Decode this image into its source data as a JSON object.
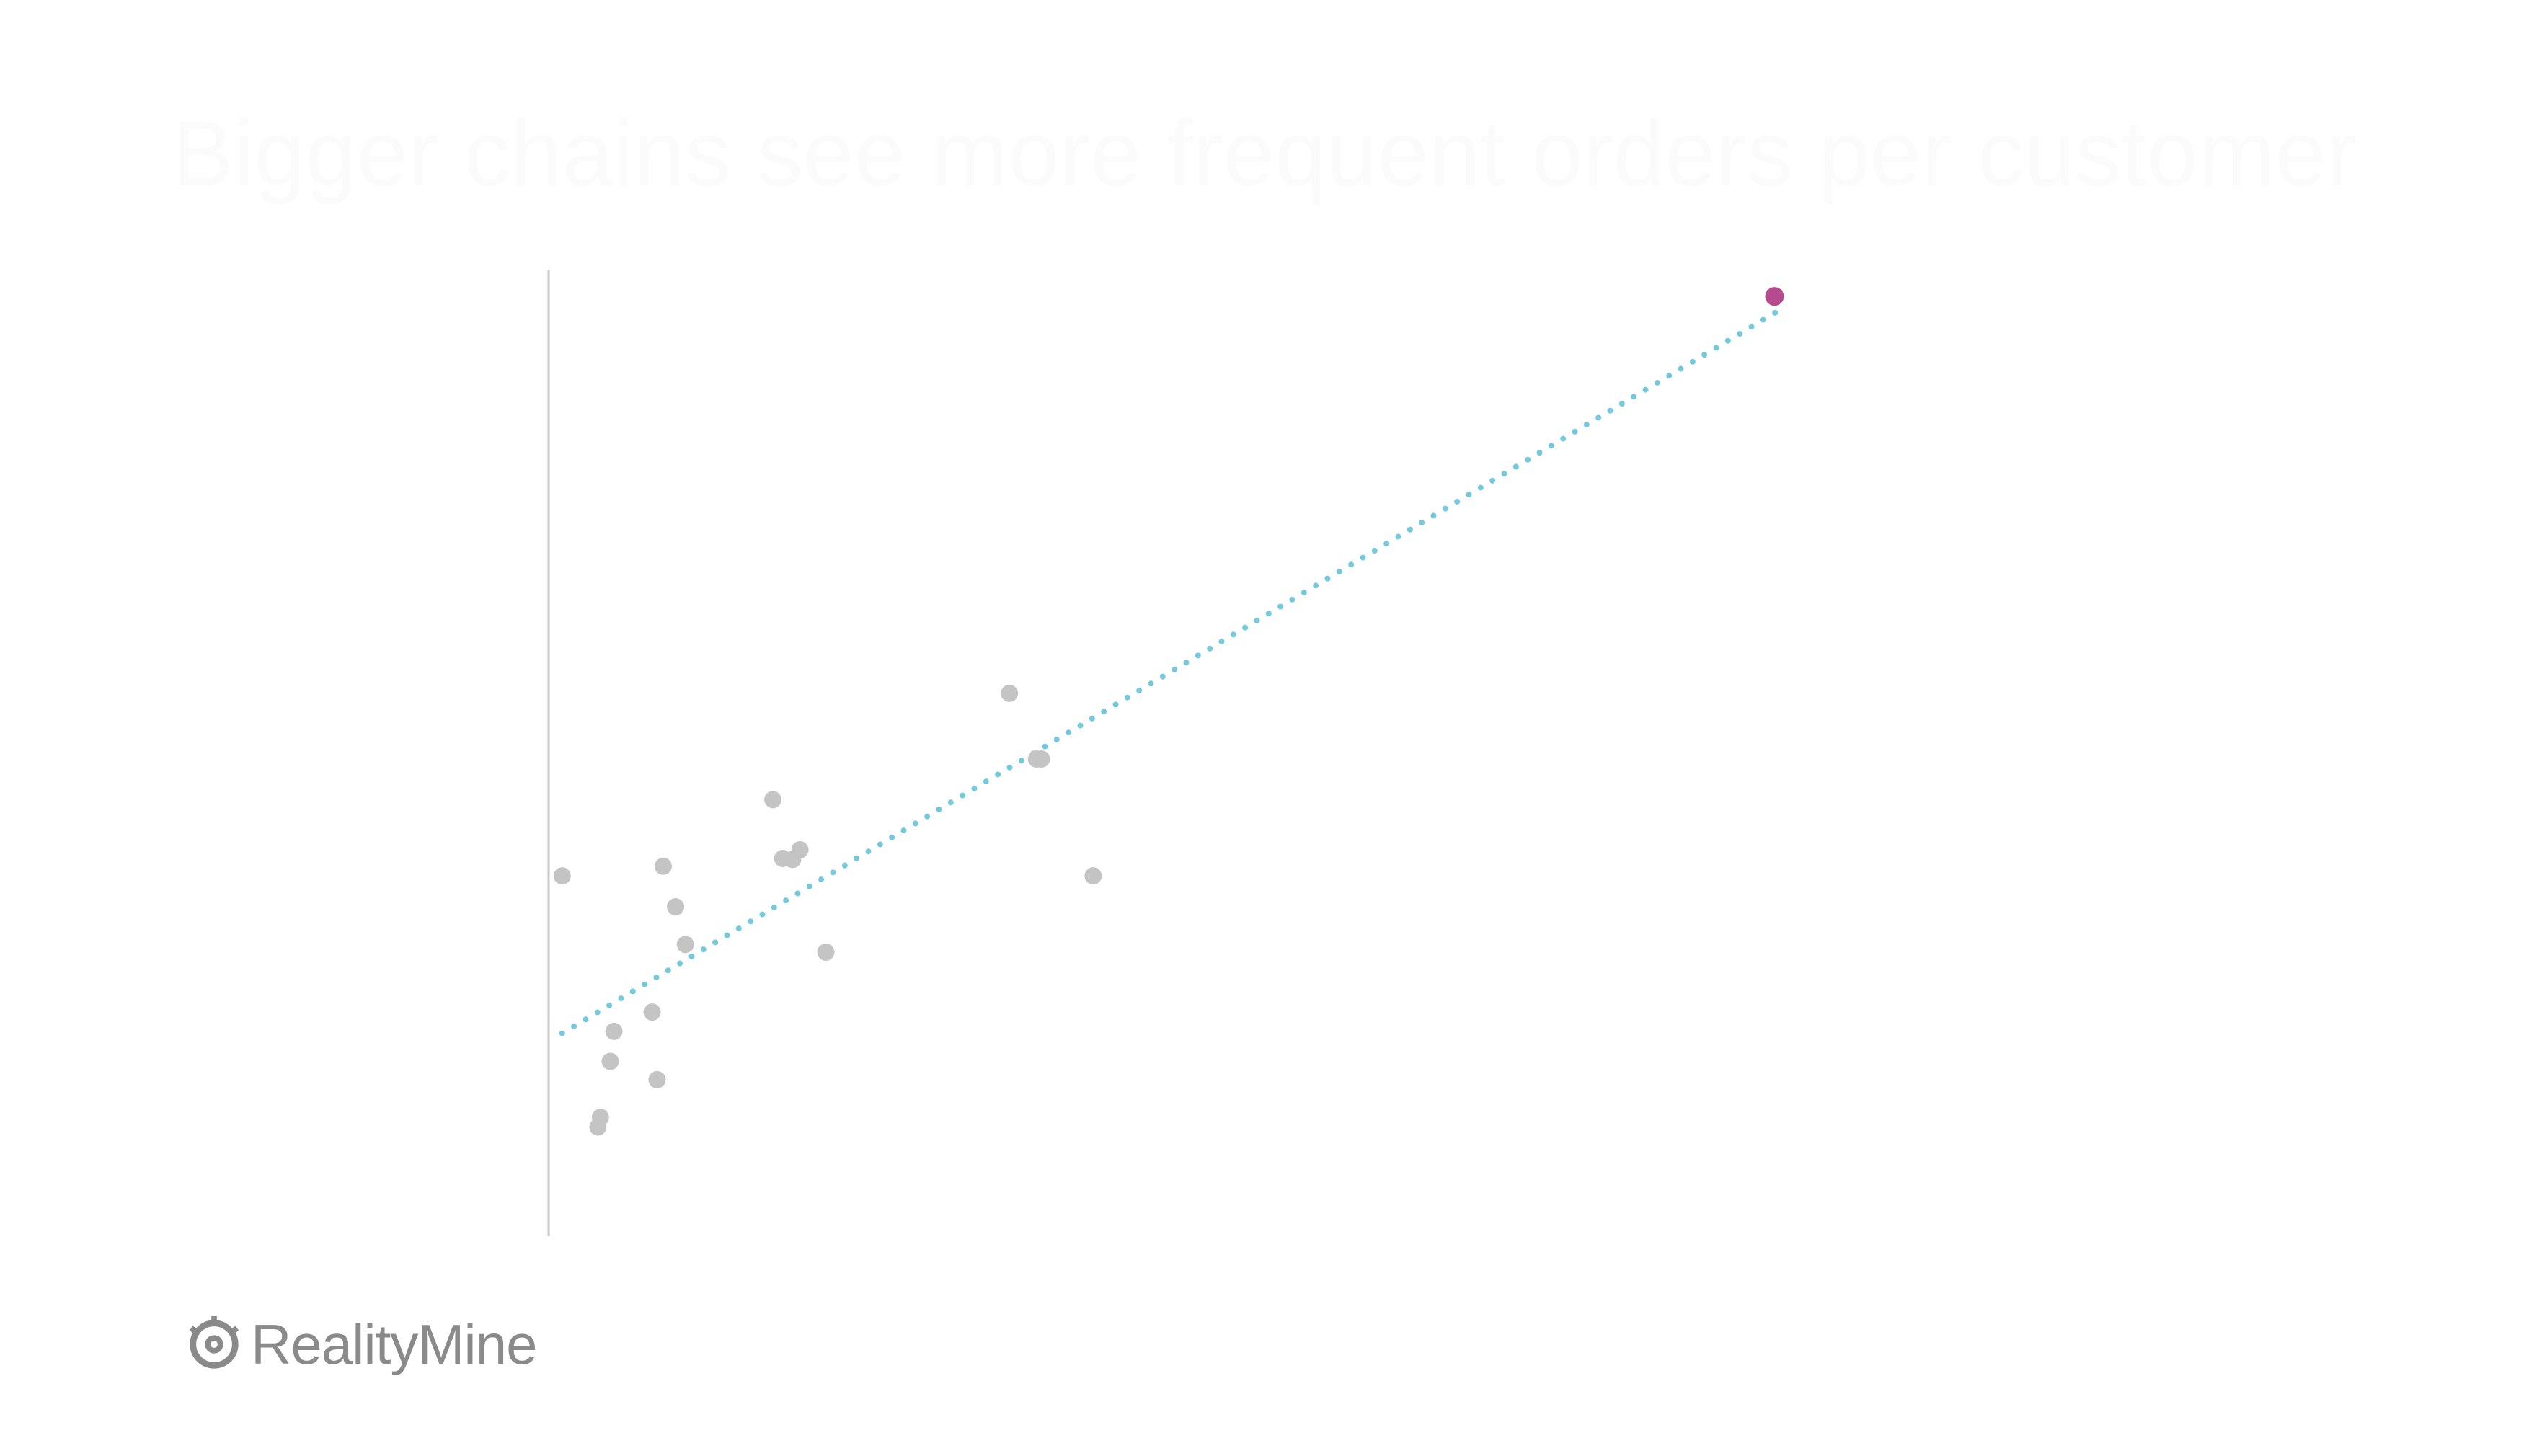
{
  "title": "Bigger chains see more frequent orders per customer",
  "colors": {
    "title": "#fbfbfb",
    "point": "#c4c4c4",
    "highlight": "#b54b8f",
    "trendline": "#74c9dd",
    "axis": "#c8c8c8",
    "logo": "#8a8a8a"
  },
  "logo": {
    "text": "RealityMine",
    "icon": "eye-gear-icon"
  },
  "chart_data": {
    "type": "scatter",
    "title": "Bigger chains see more frequent orders per customer",
    "xlabel": "",
    "ylabel": "",
    "xlim": [
      0,
      100
    ],
    "ylim": [
      0,
      100
    ],
    "grid": false,
    "legend": "none",
    "points": [
      {
        "x": 1.1,
        "y": 37.3
      },
      {
        "x": 4.0,
        "y": 11.3
      },
      {
        "x": 4.2,
        "y": 12.3
      },
      {
        "x": 5.0,
        "y": 18.1
      },
      {
        "x": 5.3,
        "y": 21.2
      },
      {
        "x": 8.4,
        "y": 23.2
      },
      {
        "x": 8.8,
        "y": 16.2
      },
      {
        "x": 9.3,
        "y": 38.3
      },
      {
        "x": 10.3,
        "y": 34.1
      },
      {
        "x": 11.1,
        "y": 30.2
      },
      {
        "x": 18.2,
        "y": 45.2
      },
      {
        "x": 19.0,
        "y": 39.1
      },
      {
        "x": 19.8,
        "y": 39.0
      },
      {
        "x": 20.4,
        "y": 40.0
      },
      {
        "x": 22.5,
        "y": 29.4
      },
      {
        "x": 37.4,
        "y": 56.2
      },
      {
        "x": 39.6,
        "y": 49.4
      },
      {
        "x": 40.0,
        "y": 49.4
      },
      {
        "x": 44.2,
        "y": 37.3
      }
    ],
    "highlight_points": [
      {
        "x": 99.5,
        "y": 97.3
      }
    ],
    "trendline": {
      "style": "dotted",
      "from": {
        "x": 1.1,
        "y": 21.0
      },
      "to": {
        "x": 99.8,
        "y": 95.8
      }
    }
  }
}
